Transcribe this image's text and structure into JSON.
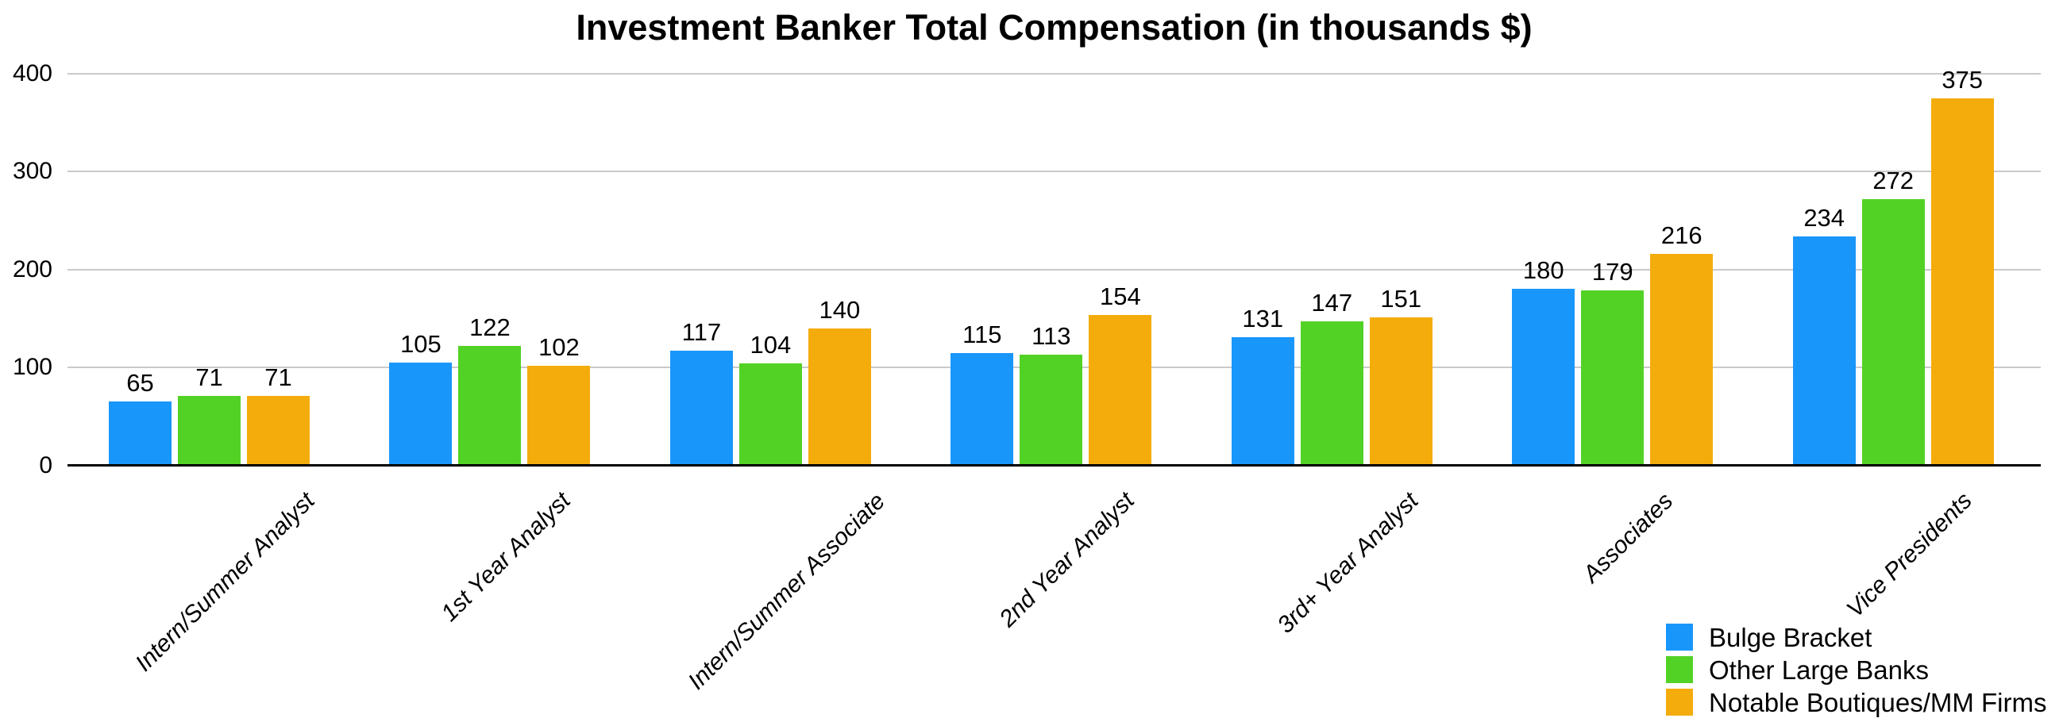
{
  "chart_data": {
    "type": "bar",
    "title": "Investment Banker Total Compensation (in thousands $)",
    "categories": [
      "Intern/Summer Analyst",
      "1st Year Analyst",
      "Intern/Summer Associate",
      "2nd Year Analyst",
      "3rd+ Year Analyst",
      "Associates",
      "Vice Presidents"
    ],
    "series": [
      {
        "name": "Bulge Bracket",
        "color": "#1996FA",
        "values": [
          65,
          105,
          117,
          115,
          131,
          180,
          234
        ]
      },
      {
        "name": "Other Large Banks",
        "color": "#53D226",
        "values": [
          71,
          122,
          104,
          113,
          147,
          179,
          272
        ]
      },
      {
        "name": "Notable Boutiques/MM Firms",
        "color": "#F4AC0D",
        "values": [
          71,
          102,
          140,
          154,
          151,
          216,
          375
        ]
      }
    ],
    "y_ticks": [
      0,
      100,
      200,
      300,
      400
    ],
    "ylim": [
      0,
      400
    ],
    "grid": true,
    "value_labels": true,
    "legend_position": "bottom-right",
    "x_labels_rotation_deg": -45,
    "x_labels_style": "italic"
  },
  "style": {
    "background": "#FFFFFF",
    "grid_color": "#C9C9C9",
    "axis_color": "#000000",
    "text_color": "#000000"
  }
}
